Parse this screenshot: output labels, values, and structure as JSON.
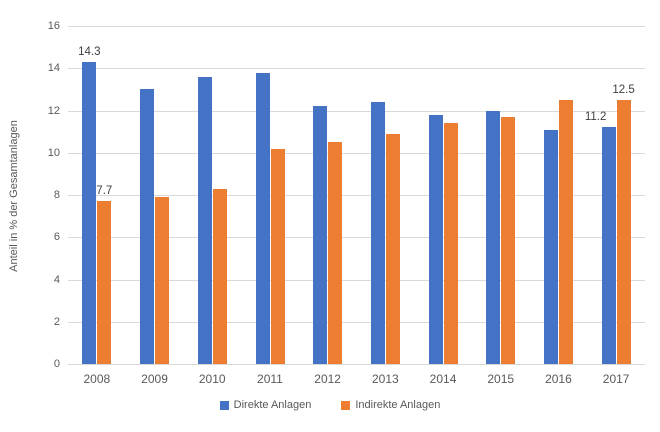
{
  "chart_data": {
    "type": "bar",
    "title": "",
    "xlabel": "",
    "ylabel": "Anteil in % der Gesamtanlagen",
    "ylim": [
      0,
      16
    ],
    "yticks": [
      0,
      2,
      4,
      6,
      8,
      10,
      12,
      14,
      16
    ],
    "grid": true,
    "legend_position": "bottom",
    "categories": [
      "2008",
      "2009",
      "2010",
      "2011",
      "2012",
      "2013",
      "2014",
      "2015",
      "2016",
      "2017"
    ],
    "series": [
      {
        "name": "Direkte Anlagen",
        "color": "#4472C4",
        "values": [
          14.3,
          13.0,
          13.6,
          13.8,
          12.2,
          12.4,
          11.8,
          12.0,
          11.1,
          11.2
        ]
      },
      {
        "name": "Indirekte Anlagen",
        "color": "#ED7D31",
        "values": [
          7.7,
          7.9,
          8.3,
          10.2,
          10.5,
          10.9,
          11.4,
          11.7,
          12.5,
          12.5
        ]
      }
    ],
    "data_labels": [
      {
        "category": "2008",
        "series": 0,
        "text": "14.3"
      },
      {
        "category": "2008",
        "series": 1,
        "text": "7.7"
      },
      {
        "category": "2017",
        "series": 0,
        "text": "11.2"
      },
      {
        "category": "2017",
        "series": 1,
        "text": "12.5"
      }
    ],
    "colors": {
      "gridline": "#D9D9D9",
      "axis_text": "#595959",
      "label_text": "#404040",
      "background": "#FFFFFF"
    }
  }
}
